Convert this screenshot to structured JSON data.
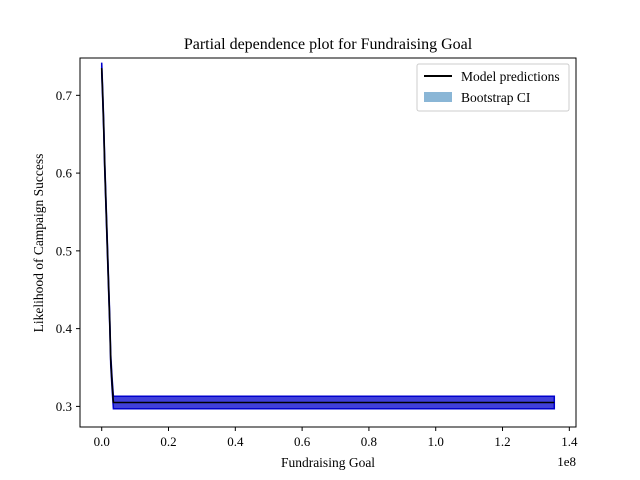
{
  "chart_data": {
    "type": "line",
    "title": "Partial dependence plot for Fundraising Goal",
    "xlabel": "Fundraising Goal",
    "ylabel": "Likelihood of Campaign Success",
    "x_offset_label": "1e8",
    "xlim": [
      -0.065,
      1.42
    ],
    "ylim": [
      0.2735,
      0.748
    ],
    "x_ticks": [
      0.0,
      0.2,
      0.4,
      0.6,
      0.8,
      1.0,
      1.2,
      1.4
    ],
    "x_tick_labels": [
      "0.0",
      "0.2",
      "0.4",
      "0.6",
      "0.8",
      "1.0",
      "1.2",
      "1.4"
    ],
    "y_ticks": [
      0.3,
      0.4,
      0.5,
      0.6,
      0.7
    ],
    "y_tick_labels": [
      "0.3",
      "0.4",
      "0.5",
      "0.6",
      "0.7"
    ],
    "grid": false,
    "legend_position": "top-right",
    "series": [
      {
        "name": "Model predictions",
        "color": "#000000",
        "x": [
          0.0,
          0.003,
          0.006,
          0.009,
          0.012,
          0.015,
          0.018,
          0.021,
          0.024,
          0.027,
          0.031,
          0.035,
          1.355
        ],
        "y": [
          0.735,
          0.7,
          0.66,
          0.61,
          0.57,
          0.53,
          0.49,
          0.45,
          0.41,
          0.36,
          0.33,
          0.305,
          0.305
        ]
      }
    ],
    "bands": [
      {
        "name": "Bootstrap CI",
        "color": "#0000cd",
        "legend_color": "#8ab6d6",
        "x": [
          0.0,
          0.003,
          0.006,
          0.009,
          0.012,
          0.015,
          0.018,
          0.021,
          0.024,
          0.027,
          0.031,
          0.035,
          1.355
        ],
        "lower": [
          0.728,
          0.693,
          0.653,
          0.603,
          0.563,
          0.523,
          0.483,
          0.443,
          0.403,
          0.353,
          0.323,
          0.297,
          0.297
        ],
        "upper": [
          0.742,
          0.707,
          0.667,
          0.617,
          0.577,
          0.537,
          0.497,
          0.457,
          0.417,
          0.367,
          0.337,
          0.313,
          0.313
        ]
      }
    ]
  }
}
